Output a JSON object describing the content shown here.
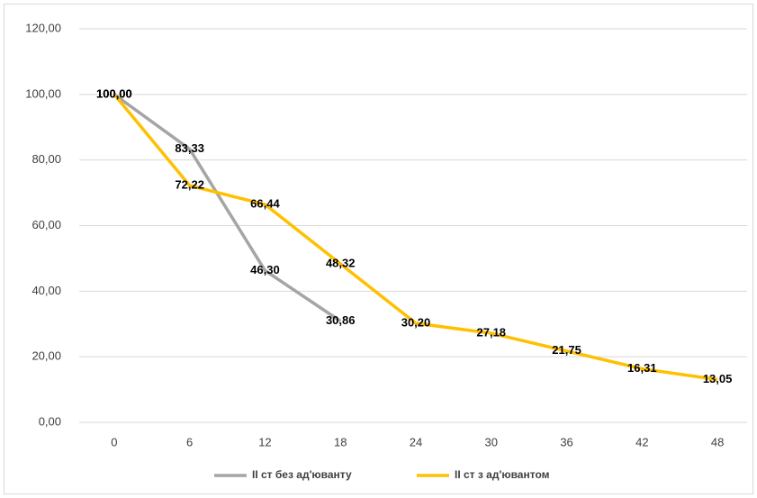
{
  "chart_data": {
    "type": "line",
    "categories": [
      "0",
      "6",
      "12",
      "18",
      "24",
      "30",
      "36",
      "42",
      "48"
    ],
    "series": [
      {
        "name": "II ст без ад'юванту",
        "color": "#a5a5a5",
        "values": [
          100,
          83.33,
          46.3,
          30.86,
          null,
          null,
          null,
          null,
          null
        ],
        "value_labels": [
          "100,00",
          "83,33",
          "46,30",
          "30,86",
          null,
          null,
          null,
          null,
          null
        ]
      },
      {
        "name": "II ст з ад'ювантом",
        "color": "#ffc000",
        "values": [
          100,
          72.22,
          66.44,
          48.32,
          30.2,
          27.18,
          21.75,
          16.31,
          13.05
        ],
        "value_labels": [
          "100,00",
          "72,22",
          "66,44",
          "48,32",
          "30,20",
          "27,18",
          "21,75",
          "16,31",
          "13,05"
        ]
      }
    ],
    "ylim": [
      0,
      120
    ],
    "yticks": [
      {
        "value": 0,
        "label": "0,00"
      },
      {
        "value": 20,
        "label": "20,00"
      },
      {
        "value": 40,
        "label": "40,00"
      },
      {
        "value": 60,
        "label": "60,00"
      },
      {
        "value": 80,
        "label": "80,00"
      },
      {
        "value": 100,
        "label": "100,00"
      },
      {
        "value": 120,
        "label": "120,00"
      }
    ],
    "grid": true,
    "legend": "bottom"
  }
}
